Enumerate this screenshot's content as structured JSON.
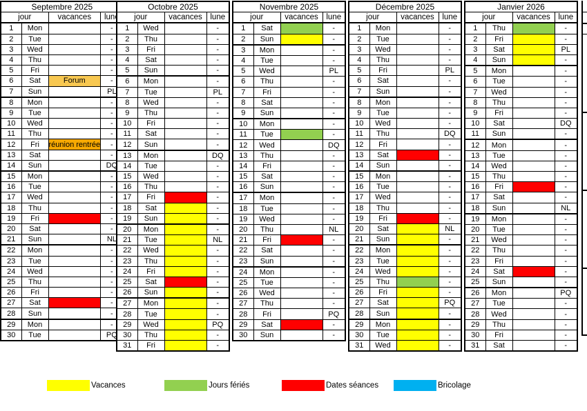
{
  "colors": {
    "vacances": "#FFFF00",
    "ferie": "#92D050",
    "seance": "#FF0000",
    "bricolage": "#00B0F0",
    "forum": "#F8C851",
    "reunion": "#F5A802"
  },
  "months": [
    {
      "name": "Septembre 2025",
      "headers": [
        "jour",
        "vacances",
        "lune"
      ],
      "days": [
        [
          1,
          "Mon",
          "-",
          ""
        ],
        [
          2,
          "Tue",
          "-",
          ""
        ],
        [
          3,
          "Wed",
          "-",
          ""
        ],
        [
          4,
          "Thu",
          "-",
          ""
        ],
        [
          5,
          "Fri",
          "-",
          ""
        ],
        [
          6,
          "Sat",
          "-",
          "forum",
          "Forum"
        ],
        [
          7,
          "Sun",
          "PL",
          ""
        ],
        [
          8,
          "Mon",
          "-",
          ""
        ],
        [
          9,
          "Tue",
          "-",
          ""
        ],
        [
          10,
          "Wed",
          "-",
          ""
        ],
        [
          11,
          "Thu",
          "-",
          ""
        ],
        [
          12,
          "Fri",
          "-",
          "reunion",
          "réunion rentrée"
        ],
        [
          13,
          "Sat",
          "-",
          ""
        ],
        [
          14,
          "Sun",
          "DQ",
          ""
        ],
        [
          15,
          "Mon",
          "-",
          ""
        ],
        [
          16,
          "Tue",
          "-",
          ""
        ],
        [
          17,
          "Wed",
          "-",
          ""
        ],
        [
          18,
          "Thu",
          "-",
          ""
        ],
        [
          19,
          "Fri",
          "-",
          "seance"
        ],
        [
          20,
          "Sat",
          "-",
          ""
        ],
        [
          21,
          "Sun",
          "NL",
          ""
        ],
        [
          22,
          "Mon",
          "-",
          ""
        ],
        [
          23,
          "Tue",
          "-",
          ""
        ],
        [
          24,
          "Wed",
          "-",
          ""
        ],
        [
          25,
          "Thu",
          "-",
          ""
        ],
        [
          26,
          "Fri",
          "-",
          ""
        ],
        [
          27,
          "Sat",
          "-",
          "seance"
        ],
        [
          28,
          "Sun",
          "-",
          ""
        ],
        [
          29,
          "Mon",
          "-",
          ""
        ],
        [
          30,
          "Tue",
          "PQ",
          ""
        ]
      ]
    },
    {
      "name": "Octobre 2025",
      "headers": [
        "jour",
        "vacances",
        "lune"
      ],
      "days": [
        [
          1,
          "Wed",
          "-",
          ""
        ],
        [
          2,
          "Thu",
          "-",
          ""
        ],
        [
          3,
          "Fri",
          "-",
          ""
        ],
        [
          4,
          "Sat",
          "-",
          ""
        ],
        [
          5,
          "Sun",
          "-",
          ""
        ],
        [
          6,
          "Mon",
          "-",
          ""
        ],
        [
          7,
          "Tue",
          "PL",
          ""
        ],
        [
          8,
          "Wed",
          "-",
          ""
        ],
        [
          9,
          "Thu",
          "-",
          ""
        ],
        [
          10,
          "Fri",
          "-",
          ""
        ],
        [
          11,
          "Sat",
          "-",
          ""
        ],
        [
          12,
          "Sun",
          "-",
          ""
        ],
        [
          13,
          "Mon",
          "DQ",
          ""
        ],
        [
          14,
          "Tue",
          "-",
          ""
        ],
        [
          15,
          "Wed",
          "-",
          ""
        ],
        [
          16,
          "Thu",
          "-",
          ""
        ],
        [
          17,
          "Fri",
          "-",
          "seance"
        ],
        [
          18,
          "Sat",
          "-",
          "vacances"
        ],
        [
          19,
          "Sun",
          "-",
          "vacances"
        ],
        [
          20,
          "Mon",
          "-",
          "vacances"
        ],
        [
          21,
          "Tue",
          "NL",
          "vacances"
        ],
        [
          22,
          "Wed",
          "-",
          "vacances"
        ],
        [
          23,
          "Thu",
          "-",
          "vacances"
        ],
        [
          24,
          "Fri",
          "-",
          "vacances"
        ],
        [
          25,
          "Sat",
          "-",
          "seance"
        ],
        [
          26,
          "Sun",
          "-",
          "vacances"
        ],
        [
          27,
          "Mon",
          "-",
          "vacances"
        ],
        [
          28,
          "Tue",
          "-",
          "vacances"
        ],
        [
          29,
          "Wed",
          "PQ",
          "vacances"
        ],
        [
          30,
          "Thu",
          "-",
          "vacances"
        ],
        [
          31,
          "Fri",
          "-",
          "vacances"
        ]
      ]
    },
    {
      "name": "Novembre 2025",
      "headers": [
        "jour",
        "vacances",
        "lune"
      ],
      "days": [
        [
          1,
          "Sat",
          "-",
          "ferie"
        ],
        [
          2,
          "Sun",
          "-",
          "vacances"
        ],
        [
          3,
          "Mon",
          "-",
          ""
        ],
        [
          4,
          "Tue",
          "-",
          ""
        ],
        [
          5,
          "Wed",
          "PL",
          ""
        ],
        [
          6,
          "Thu",
          "-",
          ""
        ],
        [
          7,
          "Fri",
          "-",
          ""
        ],
        [
          8,
          "Sat",
          "-",
          ""
        ],
        [
          9,
          "Sun",
          "-",
          ""
        ],
        [
          10,
          "Mon",
          "-",
          ""
        ],
        [
          11,
          "Tue",
          "-",
          "ferie"
        ],
        [
          12,
          "Wed",
          "DQ",
          ""
        ],
        [
          13,
          "Thu",
          "-",
          ""
        ],
        [
          14,
          "Fri",
          "-",
          ""
        ],
        [
          15,
          "Sat",
          "-",
          ""
        ],
        [
          16,
          "Sun",
          "-",
          ""
        ],
        [
          17,
          "Mon",
          "-",
          ""
        ],
        [
          18,
          "Tue",
          "-",
          ""
        ],
        [
          19,
          "Wed",
          "-",
          ""
        ],
        [
          20,
          "Thu",
          "NL",
          ""
        ],
        [
          21,
          "Fri",
          "-",
          "seance"
        ],
        [
          22,
          "Sat",
          "-",
          ""
        ],
        [
          23,
          "Sun",
          "-",
          ""
        ],
        [
          24,
          "Mon",
          "-",
          ""
        ],
        [
          25,
          "Tue",
          "-",
          ""
        ],
        [
          26,
          "Wed",
          "-",
          ""
        ],
        [
          27,
          "Thu",
          "-",
          ""
        ],
        [
          28,
          "Fri",
          "PQ",
          ""
        ],
        [
          29,
          "Sat",
          "-",
          "seance"
        ],
        [
          30,
          "Sun",
          "-",
          ""
        ]
      ]
    },
    {
      "name": "Décembre 2025",
      "headers": [
        "jour",
        "vacances",
        "lune"
      ],
      "days": [
        [
          1,
          "Mon",
          "-",
          ""
        ],
        [
          2,
          "Tue",
          "-",
          ""
        ],
        [
          3,
          "Wed",
          "-",
          ""
        ],
        [
          4,
          "Thu",
          "-",
          ""
        ],
        [
          5,
          "Fri",
          "PL",
          ""
        ],
        [
          6,
          "Sat",
          "-",
          ""
        ],
        [
          7,
          "Sun",
          "-",
          ""
        ],
        [
          8,
          "Mon",
          "-",
          ""
        ],
        [
          9,
          "Tue",
          "-",
          ""
        ],
        [
          10,
          "Wed",
          "-",
          ""
        ],
        [
          11,
          "Thu",
          "DQ",
          ""
        ],
        [
          12,
          "Fri",
          "-",
          ""
        ],
        [
          13,
          "Sat",
          "-",
          "seance"
        ],
        [
          14,
          "Sun",
          "-",
          ""
        ],
        [
          15,
          "Mon",
          "-",
          ""
        ],
        [
          16,
          "Tue",
          "-",
          ""
        ],
        [
          17,
          "Wed",
          "-",
          ""
        ],
        [
          18,
          "Thu",
          "-",
          ""
        ],
        [
          19,
          "Fri",
          "-",
          "seance"
        ],
        [
          20,
          "Sat",
          "NL",
          "vacances"
        ],
        [
          21,
          "Sun",
          "-",
          "vacances"
        ],
        [
          22,
          "Mon",
          "-",
          "vacances"
        ],
        [
          23,
          "Tue",
          "-",
          "vacances"
        ],
        [
          24,
          "Wed",
          "-",
          "vacances"
        ],
        [
          25,
          "Thu",
          "-",
          "ferie"
        ],
        [
          26,
          "Fri",
          "-",
          "vacances"
        ],
        [
          27,
          "Sat",
          "PQ",
          "vacances"
        ],
        [
          28,
          "Sun",
          "-",
          "vacances"
        ],
        [
          29,
          "Mon",
          "-",
          "vacances"
        ],
        [
          30,
          "Tue",
          "-",
          "vacances"
        ],
        [
          31,
          "Wed",
          "-",
          "vacances"
        ]
      ]
    },
    {
      "name": "Janvier 2026",
      "headers": [
        "jour",
        "vacances",
        "lune"
      ],
      "days": [
        [
          1,
          "Thu",
          "-",
          "ferie"
        ],
        [
          2,
          "Fri",
          "-",
          "vacances"
        ],
        [
          3,
          "Sat",
          "PL",
          "vacances"
        ],
        [
          4,
          "Sun",
          "-",
          "vacances"
        ],
        [
          5,
          "Mon",
          "-",
          ""
        ],
        [
          6,
          "Tue",
          "-",
          ""
        ],
        [
          7,
          "Wed",
          "-",
          ""
        ],
        [
          8,
          "Thu",
          "-",
          ""
        ],
        [
          9,
          "Fri",
          "-",
          ""
        ],
        [
          10,
          "Sat",
          "DQ",
          ""
        ],
        [
          11,
          "Sun",
          "-",
          ""
        ],
        [
          12,
          "Mon",
          "-",
          ""
        ],
        [
          13,
          "Tue",
          "-",
          ""
        ],
        [
          14,
          "Wed",
          "-",
          ""
        ],
        [
          15,
          "Thu",
          "-",
          ""
        ],
        [
          16,
          "Fri",
          "-",
          "seance"
        ],
        [
          17,
          "Sat",
          "-",
          ""
        ],
        [
          18,
          "Sun",
          "NL",
          ""
        ],
        [
          19,
          "Mon",
          "-",
          ""
        ],
        [
          20,
          "Tue",
          "-",
          ""
        ],
        [
          21,
          "Wed",
          "-",
          ""
        ],
        [
          22,
          "Thu",
          "-",
          ""
        ],
        [
          23,
          "Fri",
          "-",
          ""
        ],
        [
          24,
          "Sat",
          "-",
          "seance"
        ],
        [
          25,
          "Sun",
          "-",
          ""
        ],
        [
          26,
          "Mon",
          "PQ",
          ""
        ],
        [
          27,
          "Tue",
          "-",
          ""
        ],
        [
          28,
          "Wed",
          "-",
          ""
        ],
        [
          29,
          "Thu",
          "-",
          ""
        ],
        [
          30,
          "Fri",
          "-",
          ""
        ],
        [
          31,
          "Sat",
          "-",
          ""
        ]
      ]
    }
  ],
  "legend": [
    {
      "label": "Vacances",
      "color_key": "vacances"
    },
    {
      "label": "Jours fériés",
      "color_key": "ferie"
    },
    {
      "label": "Dates séances",
      "color_key": "seance"
    },
    {
      "label": "Bricolage",
      "color_key": "bricolage"
    }
  ]
}
